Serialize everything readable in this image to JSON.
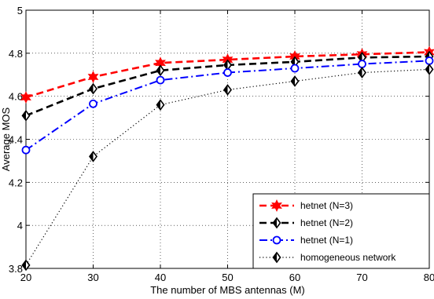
{
  "chart_data": {
    "type": "line",
    "title": "",
    "xlabel": "The number of MBS antennas (M)",
    "ylabel": "Average MOS",
    "x": [
      20,
      30,
      40,
      50,
      60,
      70,
      80
    ],
    "xlim": [
      20,
      80
    ],
    "ylim": [
      3.8,
      5
    ],
    "xticks": [
      "20",
      "30",
      "40",
      "50",
      "60",
      "70",
      "80"
    ],
    "yticks": [
      "3.8",
      "4",
      "4.2",
      "4.4",
      "4.6",
      "4.8",
      "5"
    ],
    "grid": true,
    "legend_position": "bottom-right",
    "series": [
      {
        "name": "hetnet (N=3)",
        "values": [
          4.595,
          4.69,
          4.755,
          4.77,
          4.785,
          4.795,
          4.805
        ],
        "color": "#ff0000",
        "dash": "dashed",
        "marker": "hexagram"
      },
      {
        "name": "hetnet (N=2)",
        "values": [
          4.51,
          4.635,
          4.72,
          4.745,
          4.76,
          4.78,
          4.785
        ],
        "color": "#000000",
        "dash": "dashed",
        "marker": "diamond"
      },
      {
        "name": "hetnet (N=1)",
        "values": [
          4.35,
          4.565,
          4.675,
          4.71,
          4.73,
          4.75,
          4.765
        ],
        "color": "#0000ff",
        "dash": "dashdot",
        "marker": "circle"
      },
      {
        "name": "homogeneous network",
        "values": [
          3.815,
          4.32,
          4.56,
          4.63,
          4.67,
          4.71,
          4.725
        ],
        "color": "#000000",
        "dash": "dotted",
        "marker": "diamond"
      }
    ]
  }
}
